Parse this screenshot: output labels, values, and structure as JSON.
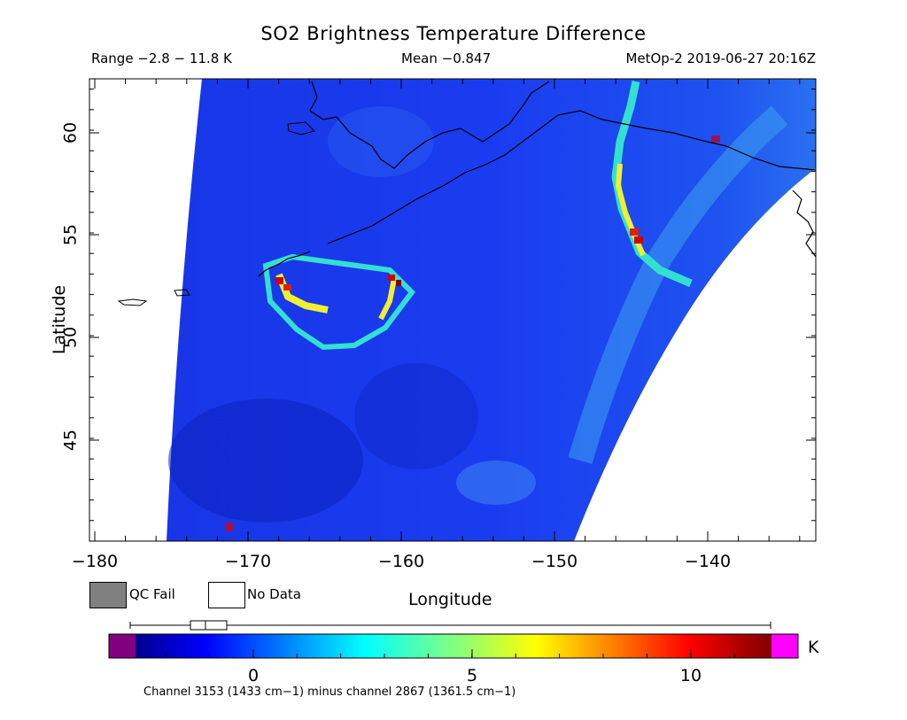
{
  "title": "SO2 Brightness Temperature Difference",
  "header": {
    "range": "Range −2.8 − 11.8 K",
    "mean": "Mean −0.847",
    "stamp": "MetOp-2 2019-06-27 20:16Z"
  },
  "axes": {
    "xlabel": "Longitude",
    "ylabel": "Latitude",
    "x_ticks": [
      "−180",
      "−170",
      "−160",
      "−150",
      "−140"
    ],
    "y_ticks": [
      "45",
      "50",
      "55",
      "60"
    ]
  },
  "legend": {
    "qc_fail": "QC Fail",
    "no_data": "No Data",
    "qc_fail_color": "#808080",
    "no_data_color": "#ffffff"
  },
  "colorbar": {
    "unit": "K",
    "ticks": [
      "0",
      "5",
      "10"
    ],
    "note": "Channel 3153 (1433 cm−1) minus channel 2867 (1361.5 cm−1)",
    "under_color": "#800080",
    "over_color": "#ff00ff"
  },
  "map_colors": {
    "background": "#1a3cf0",
    "swath_dark": "#0b1fb8",
    "signal_cyan": "#33e0d0",
    "signal_yellow": "#f0f030",
    "signal_red": "#d00000",
    "coast": "#000000"
  }
}
